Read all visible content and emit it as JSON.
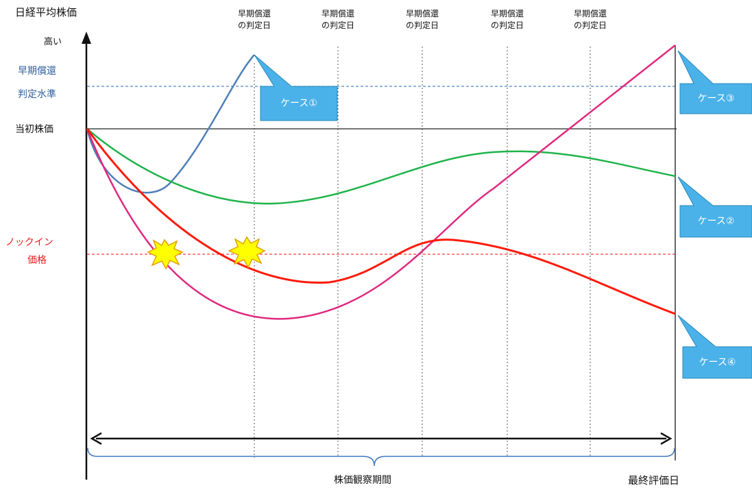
{
  "axis": {
    "y_title": "日経平均株価",
    "y_high": "高い",
    "early_redemption_level": [
      "早期償還",
      "判定水準"
    ],
    "initial_price": "当初株価",
    "knock_in_price": [
      "ノックイン",
      "価格"
    ]
  },
  "observation_dates": [
    [
      "早期償還",
      "の判定日"
    ],
    [
      "早期償還",
      "の判定日"
    ],
    [
      "早期償還",
      "の判定日"
    ],
    [
      "早期償還",
      "の判定日"
    ],
    [
      "早期償還",
      "の判定日"
    ]
  ],
  "bottom": {
    "period_label": "株価観察期間",
    "final_date_label": "最終評価日"
  },
  "cases": [
    {
      "label": "ケース①",
      "color": "#4f7fb8"
    },
    {
      "label": "ケース②",
      "color": "#1fb34a"
    },
    {
      "label": "ケース③",
      "color": "#e0287e"
    },
    {
      "label": "ケース④",
      "color": "#ff1a0a"
    }
  ],
  "colors": {
    "callout_fill": "#4ab2e8",
    "callout_stroke": "#2b88b8",
    "early_line": "#4a84c4",
    "knock_in_line": "#ff3b3b",
    "burst_fill": "#ffff00",
    "burst_stroke": "#e0a000"
  }
}
